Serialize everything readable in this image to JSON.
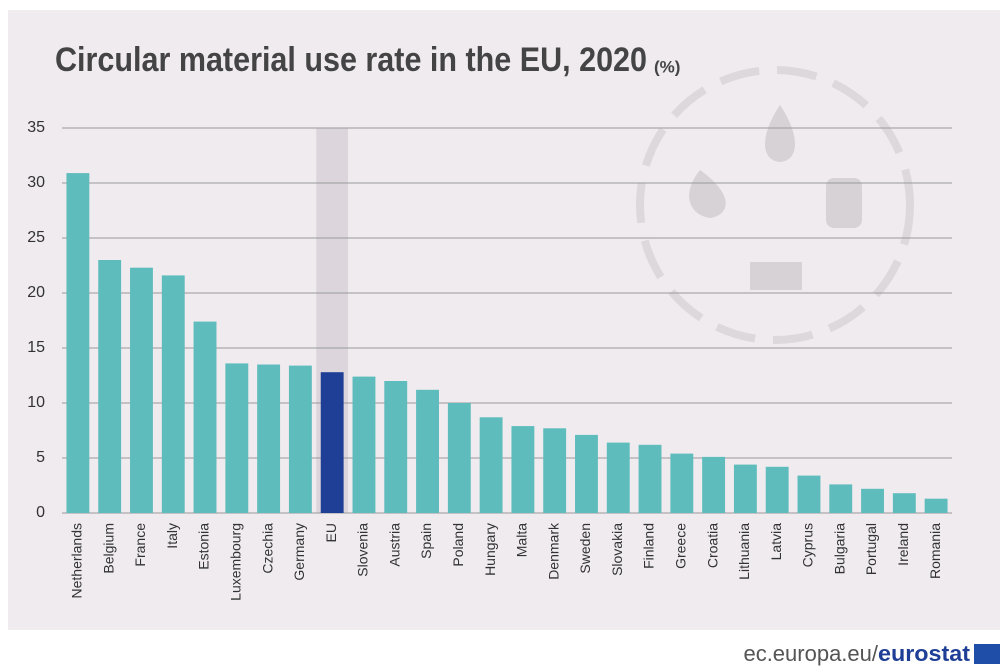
{
  "chart_data": {
    "type": "bar",
    "title": "Circular material use rate in the EU, 2020",
    "unit_label": "(%)",
    "source": "ec.europa.eu/",
    "source_brand": "eurostat",
    "categories": [
      "Netherlands",
      "Belgium",
      "France",
      "Italy",
      "Estonia",
      "Luxembourg",
      "Czechia",
      "Germany",
      "EU",
      "Slovenia",
      "Austria",
      "Spain",
      "Poland",
      "Hungary",
      "Malta",
      "Denmark",
      "Sweden",
      "Slovakia",
      "Finland",
      "Greece",
      "Croatia",
      "Lithuania",
      "Latvia",
      "Cyprus",
      "Bulgaria",
      "Portugal",
      "Ireland",
      "Romania"
    ],
    "values": [
      30.9,
      23.0,
      22.3,
      21.6,
      17.4,
      13.6,
      13.5,
      13.4,
      12.8,
      12.4,
      12.0,
      11.2,
      10.0,
      8.7,
      7.9,
      7.7,
      7.1,
      6.4,
      6.2,
      5.4,
      5.1,
      4.4,
      4.2,
      3.4,
      2.6,
      2.2,
      1.8,
      1.3
    ],
    "colors": [
      "#5fbcbd",
      "#5fbcbd",
      "#5fbcbd",
      "#5fbcbd",
      "#5fbcbd",
      "#5fbcbd",
      "#5fbcbd",
      "#5fbcbd",
      "#1f3f96",
      "#5fbcbd",
      "#5fbcbd",
      "#5fbcbd",
      "#5fbcbd",
      "#5fbcbd",
      "#5fbcbd",
      "#5fbcbd",
      "#5fbcbd",
      "#5fbcbd",
      "#5fbcbd",
      "#5fbcbd",
      "#5fbcbd",
      "#5fbcbd",
      "#5fbcbd",
      "#5fbcbd",
      "#5fbcbd",
      "#5fbcbd",
      "#5fbcbd",
      "#5fbcbd"
    ],
    "ylim": [
      0,
      35
    ],
    "yticks": [
      0,
      5,
      10,
      15,
      20,
      25,
      30,
      35
    ],
    "grid": true
  }
}
